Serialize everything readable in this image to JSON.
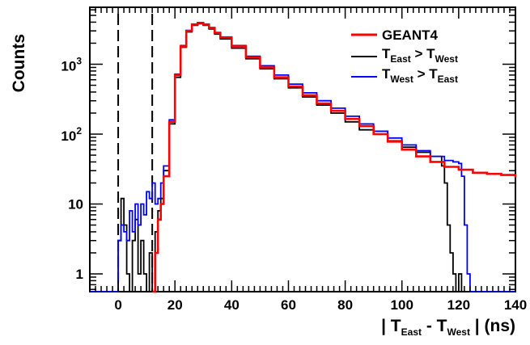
{
  "chart_data": {
    "type": "line",
    "title": "",
    "xlabel": {
      "prefix": "| T",
      "sub1": "East",
      "mid": " - T",
      "sub2": "West",
      "suffix": " | (ns)"
    },
    "ylabel": "Counts",
    "xlim": [
      -10,
      140
    ],
    "ylim": [
      0.5,
      9000
    ],
    "yscale": "log",
    "grid": false,
    "legend_position": "top-right",
    "x_ticks": [
      "0",
      "20",
      "40",
      "60",
      "80",
      "100",
      "120",
      "140"
    ],
    "y_ticks": [
      "1",
      "10"
    ],
    "y_ticks_pow": [
      {
        "base": "10",
        "exp": "2"
      },
      {
        "base": "10",
        "exp": "3"
      }
    ],
    "vlines": [
      0,
      12
    ],
    "series": [
      {
        "name": "GEANT4",
        "color": "#ff0000",
        "x": [
          12,
          13,
          14,
          15,
          16,
          18,
          20,
          22,
          24,
          26,
          28,
          30,
          32,
          34,
          36,
          40,
          45,
          50,
          55,
          60,
          65,
          70,
          75,
          80,
          85,
          90,
          95,
          100,
          105,
          110,
          115,
          120,
          125,
          130,
          135,
          140
        ],
        "y": [
          0.5,
          2,
          6,
          10,
          25,
          150,
          700,
          1800,
          3000,
          3700,
          3900,
          3700,
          3300,
          2800,
          2400,
          1800,
          1250,
          900,
          650,
          480,
          360,
          275,
          215,
          165,
          130,
          100,
          78,
          60,
          48,
          40,
          34,
          31,
          28,
          27,
          26,
          24
        ]
      },
      {
        "name": "T_East > T_West",
        "legend": {
          "t1": "T",
          "s1": "East",
          "op": " > T",
          "s2": "West"
        },
        "color": "#000000",
        "x": [
          -10,
          -1,
          0,
          1,
          2,
          3,
          4,
          5,
          6,
          7,
          8,
          9,
          10,
          11,
          12,
          13,
          14,
          15,
          16,
          18,
          20,
          22,
          24,
          26,
          28,
          30,
          32,
          34,
          36,
          40,
          45,
          50,
          55,
          60,
          65,
          70,
          75,
          80,
          85,
          90,
          95,
          100,
          105,
          110,
          114,
          115,
          116,
          117,
          118,
          119,
          120,
          121,
          140
        ],
        "y": [
          0.5,
          0.5,
          3,
          12,
          5,
          1,
          0.5,
          3,
          6,
          1,
          3,
          1,
          0.5,
          2,
          0.5,
          4,
          8,
          12,
          30,
          140,
          650,
          1750,
          2900,
          3600,
          3800,
          3600,
          3200,
          2700,
          2300,
          1700,
          1200,
          860,
          620,
          460,
          340,
          260,
          200,
          150,
          115,
          110,
          80,
          65,
          55,
          48,
          35,
          20,
          5,
          2,
          1,
          0.5,
          1,
          0.5,
          0.5
        ]
      },
      {
        "name": "T_West > T_East",
        "legend": {
          "t1": "T",
          "s1": "West",
          "op": " > T",
          "s2": "East"
        },
        "color": "#0000ff",
        "x": [
          -10,
          -1,
          0,
          1,
          2,
          3,
          4,
          5,
          6,
          7,
          8,
          9,
          10,
          11,
          12,
          13,
          14,
          15,
          16,
          18,
          20,
          22,
          24,
          26,
          28,
          30,
          32,
          34,
          36,
          40,
          45,
          50,
          55,
          60,
          65,
          70,
          75,
          80,
          85,
          90,
          95,
          100,
          105,
          110,
          115,
          118,
          120,
          121,
          122,
          123,
          124,
          125,
          140
        ],
        "y": [
          0.5,
          0.5,
          3,
          5,
          4,
          3,
          8,
          4,
          10,
          5,
          10,
          7,
          15,
          12,
          20,
          10,
          12,
          20,
          35,
          160,
          720,
          1850,
          3050,
          3750,
          3950,
          3750,
          3350,
          2850,
          2450,
          1850,
          1300,
          950,
          700,
          520,
          390,
          300,
          235,
          180,
          140,
          110,
          88,
          70,
          58,
          48,
          42,
          40,
          38,
          25,
          5,
          1,
          0.5,
          0.5,
          0.5
        ]
      }
    ]
  }
}
